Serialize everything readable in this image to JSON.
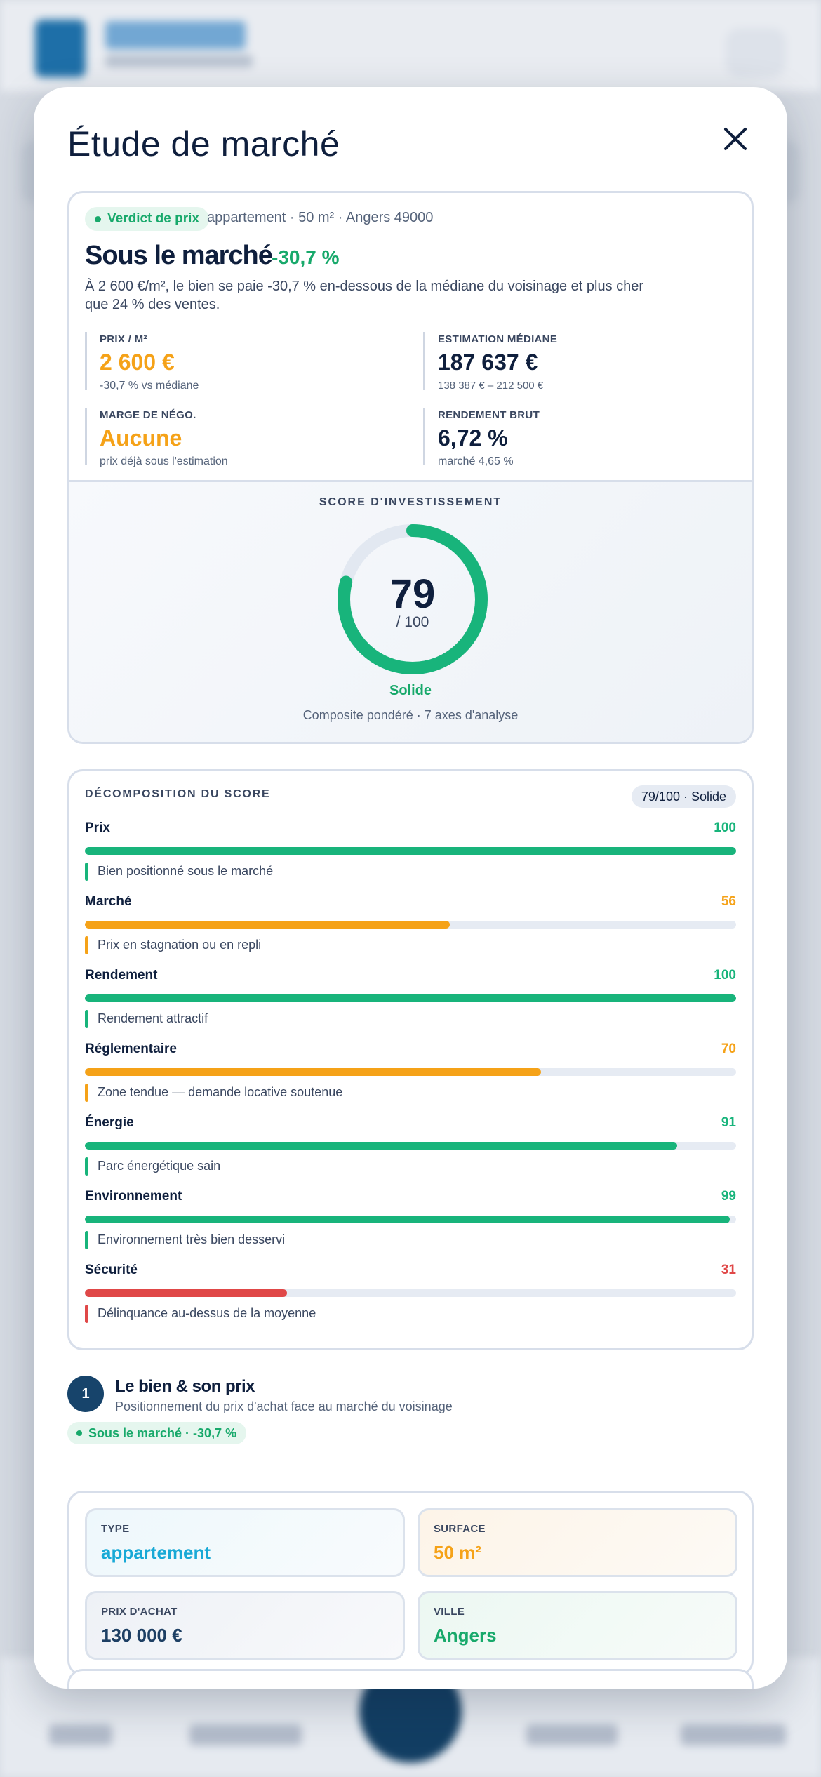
{
  "background": {
    "colors": {
      "header": "#e9ecf1",
      "nav_center": "#123e63"
    }
  },
  "modal": {
    "title": "Étude de marché",
    "close_icon": "close-icon"
  },
  "verdict": {
    "pill": "Verdict de prix",
    "meta": "appartement · 50 m² · Angers 49000",
    "headline": "Sous le marché",
    "delta": "-30,7 %",
    "description": "À 2 600 €/m², le bien se paie -30,7 % en-dessous de la médiane du voisinage et plus cher que 24 % des ventes.",
    "kpis": {
      "price_m2": {
        "label": "PRIX / M²",
        "value": "2 600 €",
        "sub": "-30,7 % vs médiane"
      },
      "median": {
        "label": "ESTIMATION MÉDIANE",
        "value": "187 637 €",
        "sub": "138 387 € – 212 500 €"
      },
      "nego": {
        "label": "MARGE DE NÉGO.",
        "value": "Aucune",
        "sub": "prix déjà sous l'estimation"
      },
      "yield": {
        "label": "RENDEMENT BRUT",
        "value": "6,72 %",
        "sub": "marché 4,65 %"
      }
    }
  },
  "score": {
    "label": "SCORE D'INVESTISSEMENT",
    "value": 79,
    "value_text": "79",
    "max_text": "/ 100",
    "tier": "Solide",
    "footnote": "Composite pondéré · 7 axes d'analyse"
  },
  "breakdown": {
    "title": "DÉCOMPOSITION DU SCORE",
    "badge": "79/100 · Solide",
    "rows": [
      {
        "name": "Prix",
        "score": 100,
        "score_text": "100",
        "note": "Bien positionné sous le marché",
        "color": "#18b47b"
      },
      {
        "name": "Marché",
        "score": 56,
        "score_text": "56",
        "note": "Prix en stagnation ou en repli",
        "color": "#f5a218"
      },
      {
        "name": "Rendement",
        "score": 100,
        "score_text": "100",
        "note": "Rendement attractif",
        "color": "#18b47b"
      },
      {
        "name": "Réglementaire",
        "score": 70,
        "score_text": "70",
        "note": "Zone tendue — demande locative soutenue",
        "color": "#f5a218"
      },
      {
        "name": "Énergie",
        "score": 91,
        "score_text": "91",
        "note": "Parc énergétique sain",
        "color": "#18b47b"
      },
      {
        "name": "Environnement",
        "score": 99,
        "score_text": "99",
        "note": "Environnement très bien desservi",
        "color": "#18b47b"
      },
      {
        "name": "Sécurité",
        "score": 31,
        "score_text": "31",
        "note": "Délinquance au-dessus de la moyenne",
        "color": "#e04848"
      }
    ]
  },
  "section1": {
    "step": "1",
    "title": "Le bien & son prix",
    "subtitle": "Positionnement du prix d'achat face au marché du voisinage",
    "pill": "Sous le marché · -30,7 %",
    "tiles": {
      "type": {
        "label": "TYPE",
        "value": "appartement",
        "color": "#18a9d6"
      },
      "surface": {
        "label": "SURFACE",
        "value": "50 m²",
        "color": "#f5a218"
      },
      "price": {
        "label": "PRIX D'ACHAT",
        "value": "130 000 €",
        "color": "#1d3f64"
      },
      "city": {
        "label": "VILLE",
        "value": "Angers",
        "color": "#18a96b"
      }
    }
  }
}
